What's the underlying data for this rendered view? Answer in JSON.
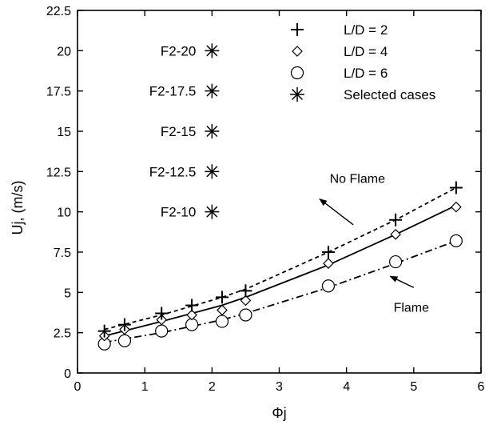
{
  "chart_data": {
    "type": "scatter",
    "xlabel": "Φj",
    "ylabel": "Uj, (m/s)",
    "xlim": [
      0,
      6
    ],
    "ylim": [
      0,
      22.5
    ],
    "xticks": [
      "0",
      "1",
      "2",
      "3",
      "4",
      "5",
      "6"
    ],
    "yticks": [
      "0",
      "2.5",
      "5",
      "7.5",
      "10",
      "12.5",
      "15",
      "17.5",
      "20",
      "22.5"
    ],
    "grid": false,
    "legend_position": "top-right",
    "series": [
      {
        "name": "L/D = 2",
        "marker": "plus",
        "x": [
          0.4,
          0.7,
          1.25,
          1.7,
          2.15,
          2.5,
          3.73,
          4.73,
          5.63
        ],
        "y": [
          2.6,
          3.0,
          3.7,
          4.2,
          4.7,
          5.1,
          7.5,
          9.5,
          11.5
        ]
      },
      {
        "name": "L/D = 4",
        "marker": "diamond",
        "x": [
          0.4,
          0.7,
          1.25,
          1.7,
          2.15,
          2.5,
          3.73,
          4.73,
          5.63
        ],
        "y": [
          2.3,
          2.7,
          3.3,
          3.6,
          3.9,
          4.5,
          6.8,
          8.6,
          10.3
        ]
      },
      {
        "name": "L/D = 6",
        "marker": "circle",
        "x": [
          0.4,
          0.7,
          1.25,
          1.7,
          2.15,
          2.5,
          3.73,
          4.73,
          5.63
        ],
        "y": [
          1.8,
          2.0,
          2.6,
          3.0,
          3.2,
          3.6,
          5.4,
          6.9,
          8.2
        ]
      },
      {
        "name": "Selected cases",
        "marker": "asterisk",
        "x": [
          2,
          2,
          2,
          2,
          2
        ],
        "y": [
          20,
          17.5,
          15,
          12.5,
          10
        ],
        "labels": [
          "F2-20",
          "F2-17.5",
          "F2-15",
          "F2-12.5",
          "F2-10"
        ]
      }
    ],
    "fit_lines": [
      {
        "style": "dashed",
        "x": [
          0.4,
          1.25,
          2.15,
          2.5,
          3.73,
          4.73,
          5.63
        ],
        "y": [
          2.7,
          3.6,
          4.7,
          5.2,
          7.5,
          9.5,
          11.5
        ]
      },
      {
        "style": "solid",
        "x": [
          0.4,
          1.25,
          2.15,
          2.5,
          3.73,
          4.73,
          5.63
        ],
        "y": [
          2.3,
          3.2,
          4.2,
          4.7,
          6.7,
          8.6,
          10.4
        ]
      },
      {
        "style": "dashdot",
        "x": [
          0.4,
          1.25,
          2.15,
          2.5,
          3.73,
          4.73,
          5.63
        ],
        "y": [
          1.9,
          2.5,
          3.3,
          3.7,
          5.3,
          6.8,
          8.2
        ]
      }
    ],
    "annotations": [
      {
        "text": "No Flame",
        "x": 3.75,
        "y": 11.8,
        "arrow_to": [
          4.1,
          9.2
        ],
        "arrow_from": [
          3.6,
          10.8
        ]
      },
      {
        "text": "Flame",
        "x": 4.7,
        "y": 3.8,
        "arrow_to": [
          5.0,
          5.3
        ],
        "arrow_from": [
          4.65,
          6.0
        ]
      }
    ]
  }
}
